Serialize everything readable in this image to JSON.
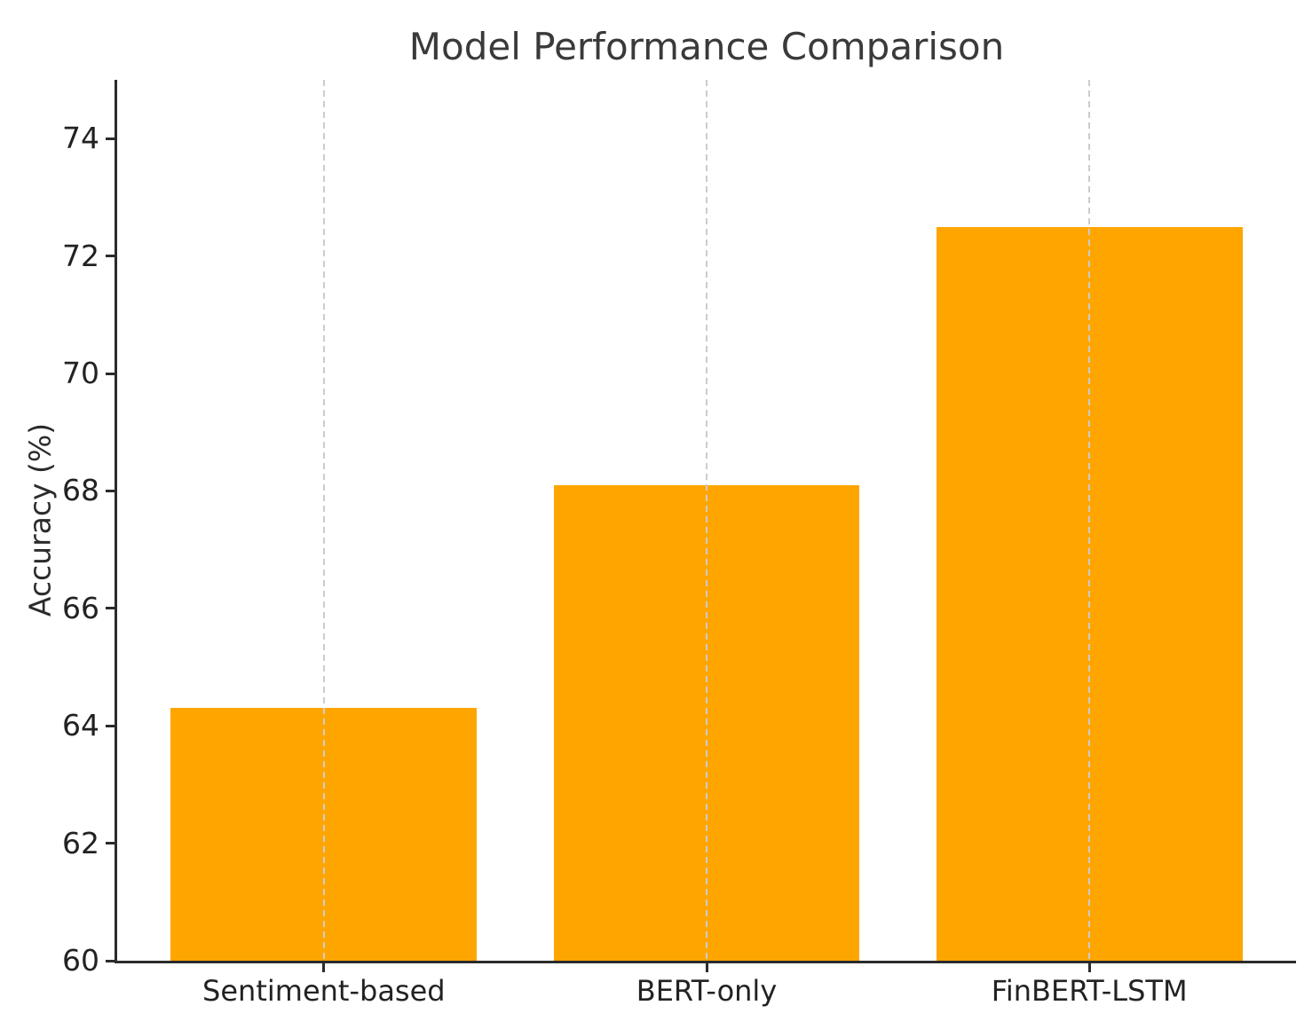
{
  "figure": {
    "background": "#ffffff"
  },
  "chart_data": {
    "type": "bar",
    "title": "Model Performance Comparison",
    "categories": [
      "Sentiment-based",
      "BERT-only",
      "FinBERT-LSTM"
    ],
    "values": [
      64.3,
      68.1,
      72.5
    ],
    "xlabel": "",
    "ylabel": "Accuracy (%)",
    "ylim": [
      60,
      75
    ],
    "yticks": [
      60,
      62,
      64,
      66,
      68,
      70,
      72,
      74
    ],
    "xlim": [
      -0.54,
      2.54
    ],
    "bar_width": 0.8,
    "bar_color": "#FFA500",
    "grid": "vertical-dashed",
    "grid_color": "#cccccc",
    "grid_on_top_of_bars": true,
    "axis_color": "#2b2b2b",
    "title_color": "#3a3a3a",
    "tick_label_color": "#222222",
    "legend": "none",
    "spines": [
      "left",
      "bottom"
    ]
  }
}
